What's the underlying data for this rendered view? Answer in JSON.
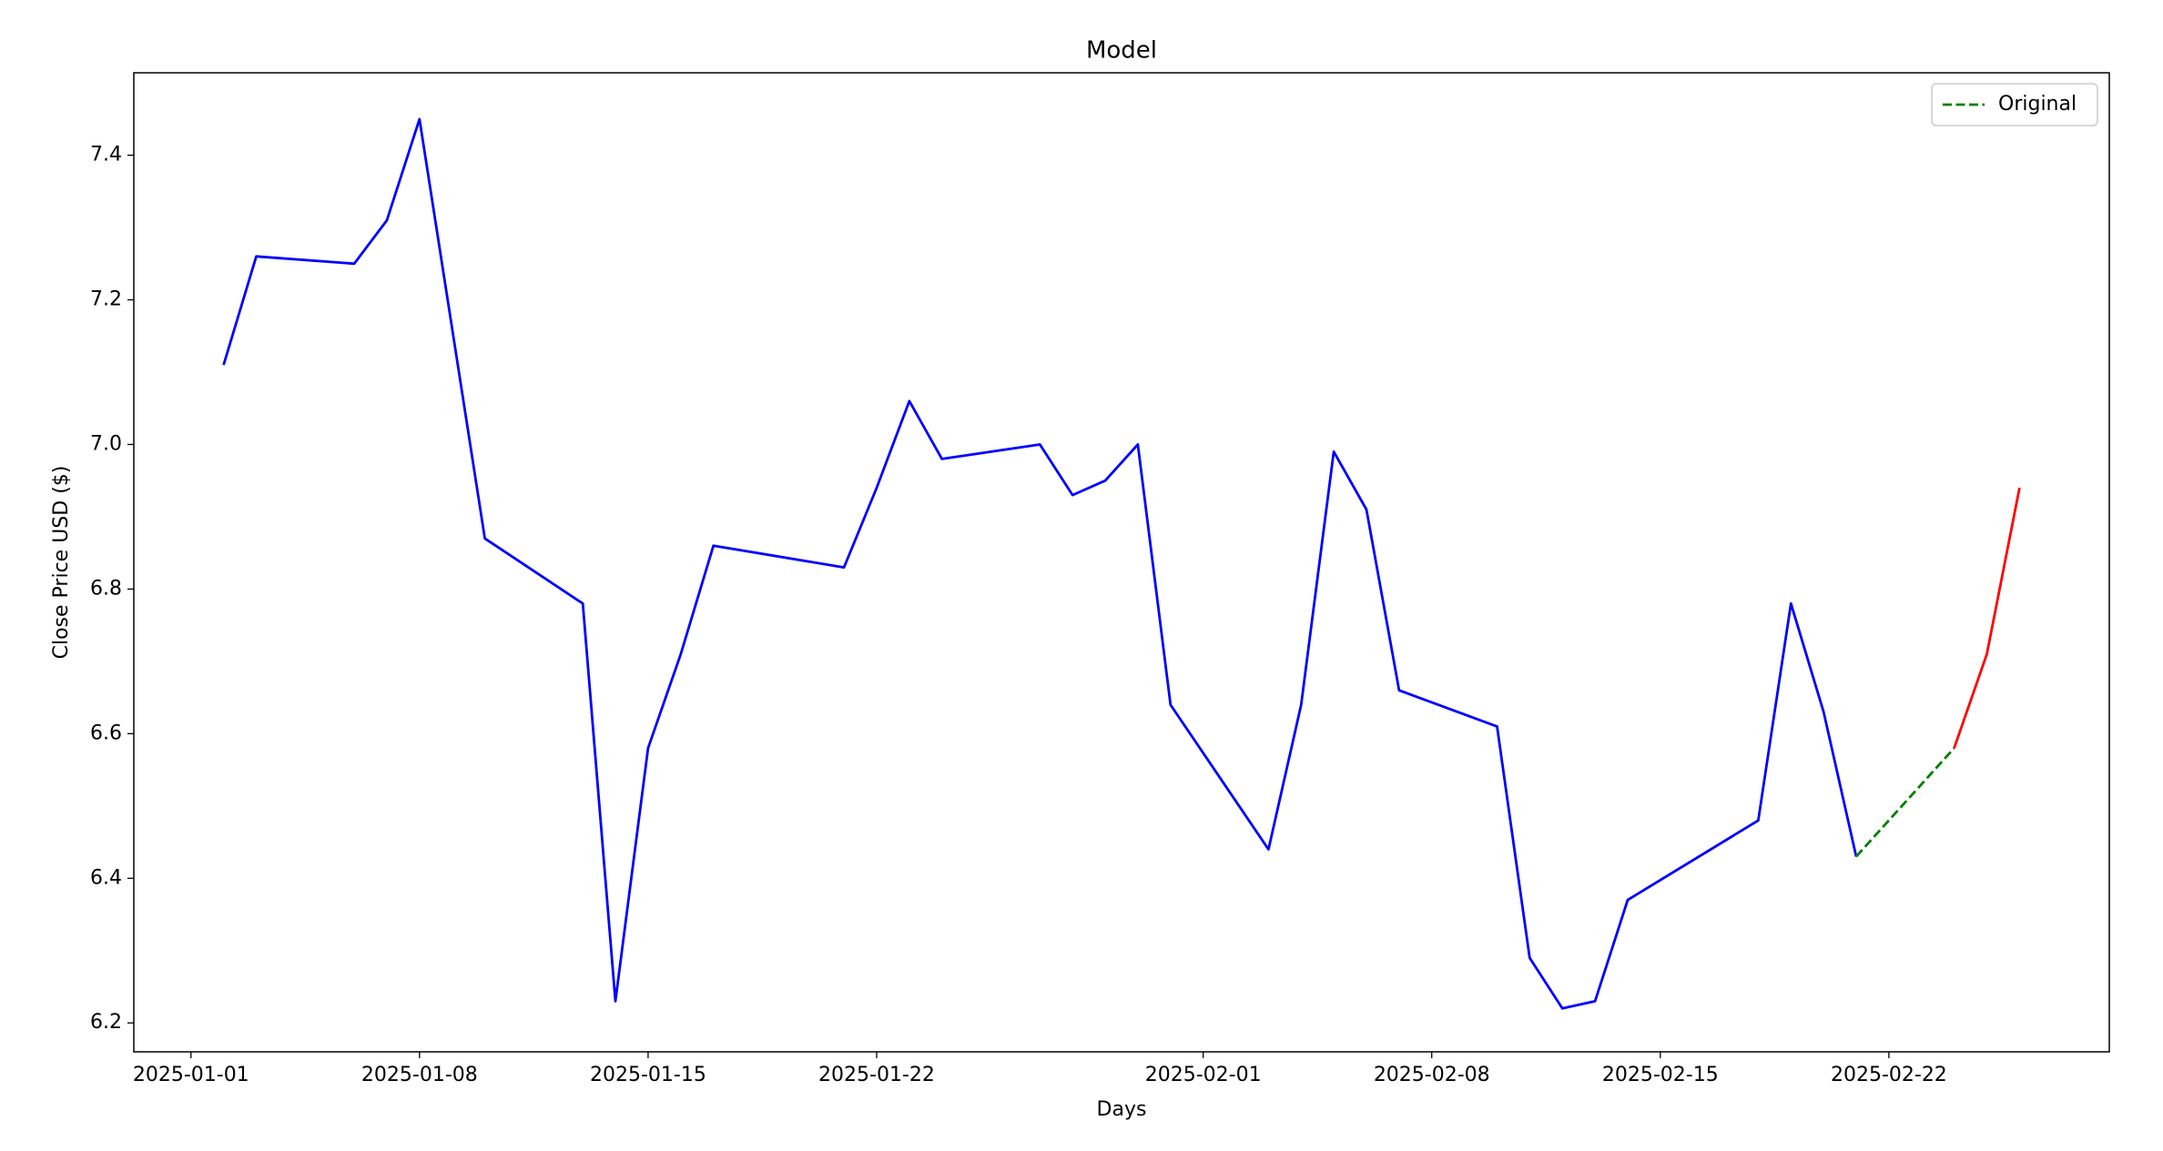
{
  "chart_data": {
    "type": "line",
    "title": "Model",
    "x_label": "Days",
    "y_label": "Close Price USD ($)",
    "xlim": [
      "2024-12-30T06:00",
      "2025-02-28T18:00"
    ],
    "xticks": [
      "2025-01-01",
      "2025-01-08",
      "2025-01-15",
      "2025-01-22",
      "2025-02-01",
      "2025-02-08",
      "2025-02-15",
      "2025-02-22"
    ],
    "ylim": [
      6.16,
      7.514
    ],
    "yticks": [
      {
        "value": 6.2,
        "label": "6.2"
      },
      {
        "value": 6.4,
        "label": "6.4"
      },
      {
        "value": 6.6,
        "label": "6.6"
      },
      {
        "value": 6.8,
        "label": "6.8"
      },
      {
        "value": 7.0,
        "label": "7.0"
      },
      {
        "value": 7.2,
        "label": "7.2"
      },
      {
        "value": 7.4,
        "label": "7.4"
      }
    ],
    "legend_position": "upper right",
    "series": [
      {
        "color": "#0000ff",
        "dash": false,
        "x": [
          "2025-01-02",
          "2025-01-03",
          "2025-01-06",
          "2025-01-07",
          "2025-01-08",
          "2025-01-10",
          "2025-01-13",
          "2025-01-14",
          "2025-01-15",
          "2025-01-16",
          "2025-01-17",
          "2025-01-21",
          "2025-01-22",
          "2025-01-23",
          "2025-01-24",
          "2025-01-27",
          "2025-01-28",
          "2025-01-29",
          "2025-01-30",
          "2025-01-31",
          "2025-02-03",
          "2025-02-04",
          "2025-02-05",
          "2025-02-06",
          "2025-02-07",
          "2025-02-10",
          "2025-02-11",
          "2025-02-12",
          "2025-02-13",
          "2025-02-14",
          "2025-02-18",
          "2025-02-19",
          "2025-02-20",
          "2025-02-21"
        ],
        "values": [
          7.11,
          7.26,
          7.25,
          7.31,
          7.45,
          6.87,
          6.78,
          6.23,
          6.58,
          6.71,
          6.86,
          6.83,
          6.94,
          7.06,
          6.98,
          7.0,
          6.93,
          6.95,
          7.0,
          6.64,
          6.44,
          6.64,
          6.99,
          6.91,
          6.66,
          6.61,
          6.29,
          6.22,
          6.23,
          6.37,
          6.48,
          6.78,
          6.63,
          6.43
        ]
      },
      {
        "name": "Original",
        "color": "#008000",
        "dash": true,
        "x": [
          "2025-02-21",
          "2025-02-24"
        ],
        "values": [
          6.43,
          6.58
        ]
      },
      {
        "color": "#ff0000",
        "dash": false,
        "x": [
          "2025-02-24",
          "2025-02-25",
          "2025-02-26"
        ],
        "values": [
          6.58,
          6.71,
          6.94
        ]
      }
    ]
  }
}
